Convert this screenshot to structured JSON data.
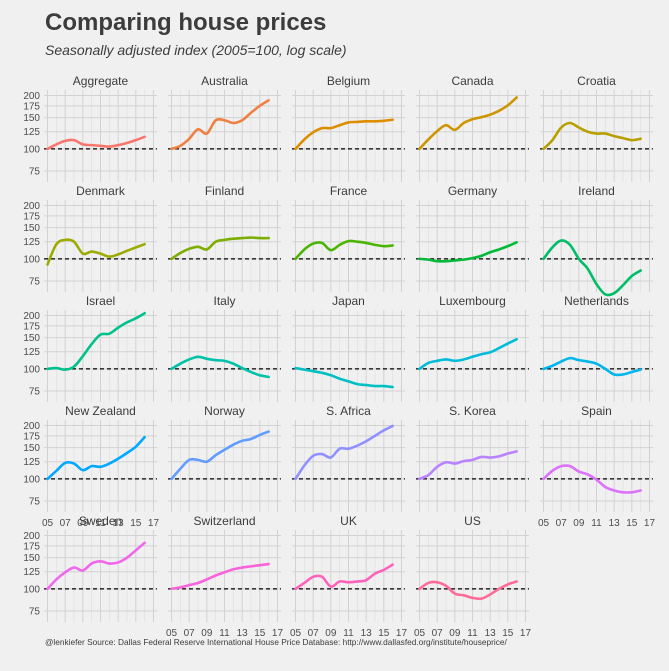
{
  "title": "Comparing house prices",
  "subtitle": "Seasonally adjusted index (2005=100, log scale)",
  "caption": "@lenkiefer Source: Dallas Federal Reserve International House Price Database: http://www.dallasfed.org/institute/houseprice/",
  "colors": {
    "background": "#f0f0f0",
    "grid": "#d2d2d2",
    "reference_line": "#000000"
  },
  "chart_data": {
    "type": "line",
    "layout": "facet-grid",
    "y_scale": "log",
    "ylim": [
      65,
      215
    ],
    "y_ticks": [
      75,
      100,
      125,
      150,
      175,
      200
    ],
    "y_tick_labels": [
      "75",
      "100",
      "125",
      "150",
      "175",
      "200"
    ],
    "xlim": [
      2004.6,
      2017.4
    ],
    "x_ticks": [
      2005,
      2007,
      2009,
      2011,
      2013,
      2015,
      2017
    ],
    "x_tick_labels": [
      "05",
      "07",
      "09",
      "11",
      "13",
      "15",
      "17"
    ],
    "reference_line": 100,
    "x": [
      2005,
      2006,
      2007,
      2008,
      2009,
      2010,
      2011,
      2012,
      2013,
      2014,
      2015,
      2016
    ],
    "series": [
      {
        "name": "Aggregate",
        "color": "#f8766d",
        "values": [
          100,
          106,
          111,
          112,
          106,
          105,
          104,
          103,
          105,
          108,
          112,
          117
        ]
      },
      {
        "name": "Australia",
        "color": "#ee8043",
        "values": [
          100,
          104,
          114,
          129,
          122,
          145,
          145,
          140,
          145,
          160,
          175,
          188
        ]
      },
      {
        "name": "Belgium",
        "color": "#de8c00",
        "values": [
          100,
          113,
          124,
          131,
          131,
          136,
          141,
          142,
          143,
          143,
          144,
          146
        ]
      },
      {
        "name": "Canada",
        "color": "#cd9600",
        "values": [
          100,
          113,
          126,
          136,
          128,
          140,
          147,
          151,
          156,
          164,
          176,
          195
        ]
      },
      {
        "name": "Croatia",
        "color": "#b79f00",
        "values": [
          100,
          112,
          132,
          140,
          132,
          125,
          122,
          122,
          118,
          115,
          112,
          114
        ]
      },
      {
        "name": "Denmark",
        "color": "#9dab00",
        "values": [
          93,
          121,
          128,
          125,
          107,
          110,
          107,
          103,
          106,
          111,
          116,
          121
        ]
      },
      {
        "name": "Finland",
        "color": "#7cae00",
        "values": [
          100,
          108,
          114,
          117,
          113,
          125,
          128,
          130,
          131,
          132,
          131,
          131
        ]
      },
      {
        "name": "France",
        "color": "#49b500",
        "values": [
          100,
          113,
          122,
          123,
          112,
          120,
          126,
          125,
          123,
          120,
          118,
          119
        ]
      },
      {
        "name": "Germany",
        "color": "#00ba38",
        "values": [
          100,
          99,
          97,
          97,
          98,
          99,
          101,
          104,
          109,
          113,
          118,
          124
        ]
      },
      {
        "name": "Ireland",
        "color": "#00be67",
        "values": [
          100,
          116,
          127,
          120,
          100,
          88,
          72,
          63,
          64,
          71,
          80,
          86
        ]
      },
      {
        "name": "Israel",
        "color": "#00c08b",
        "values": [
          100,
          101,
          99,
          103,
          118,
          138,
          156,
          158,
          171,
          183,
          193,
          206
        ]
      },
      {
        "name": "Italy",
        "color": "#00c1a9",
        "values": [
          100,
          107,
          113,
          117,
          114,
          112,
          111,
          107,
          101,
          96,
          92,
          90
        ]
      },
      {
        "name": "Japan",
        "color": "#00bfc4",
        "values": [
          101,
          99,
          97,
          95,
          92,
          88,
          85,
          82,
          81,
          80,
          80,
          79
        ]
      },
      {
        "name": "Luxembourg",
        "color": "#00bbda",
        "values": [
          100,
          108,
          111,
          113,
          111,
          113,
          117,
          121,
          124,
          131,
          139,
          147
        ]
      },
      {
        "name": "Netherlands",
        "color": "#00b6eb",
        "values": [
          100,
          104,
          110,
          115,
          112,
          110,
          107,
          100,
          93,
          93,
          96,
          99
        ]
      },
      {
        "name": "New Zealand",
        "color": "#00a9ff",
        "values": [
          100,
          111,
          123,
          122,
          112,
          118,
          117,
          122,
          130,
          140,
          152,
          172
        ]
      },
      {
        "name": "Norway",
        "color": "#619cff",
        "values": [
          100,
          114,
          128,
          128,
          125,
          136,
          146,
          156,
          164,
          168,
          177,
          185
        ]
      },
      {
        "name": "S. Africa",
        "color": "#8f91ff",
        "values": [
          100,
          119,
          135,
          138,
          132,
          148,
          148,
          154,
          163,
          175,
          188,
          199
        ]
      },
      {
        "name": "S. Korea",
        "color": "#b983ff",
        "values": [
          100,
          105,
          117,
          124,
          122,
          126,
          128,
          133,
          132,
          134,
          139,
          143
        ]
      },
      {
        "name": "Spain",
        "color": "#dc71fa",
        "values": [
          100,
          111,
          118,
          118,
          110,
          106,
          99,
          90,
          86,
          84,
          84,
          86
        ]
      },
      {
        "name": "Sweden",
        "color": "#ef67eb",
        "values": [
          100,
          113,
          124,
          132,
          127,
          139,
          143,
          139,
          141,
          150,
          165,
          182
        ]
      },
      {
        "name": "Switzerland",
        "color": "#fa62db",
        "values": [
          100,
          102,
          105,
          108,
          113,
          119,
          124,
          129,
          132,
          134,
          136,
          138
        ]
      },
      {
        "name": "UK",
        "color": "#ff62bc",
        "values": [
          100,
          108,
          117,
          117,
          103,
          110,
          109,
          110,
          112,
          122,
          128,
          137
        ]
      },
      {
        "name": "US",
        "color": "#ff6a98",
        "values": [
          100,
          108,
          109,
          104,
          94,
          92,
          89,
          88,
          93,
          100,
          106,
          110
        ]
      }
    ]
  }
}
